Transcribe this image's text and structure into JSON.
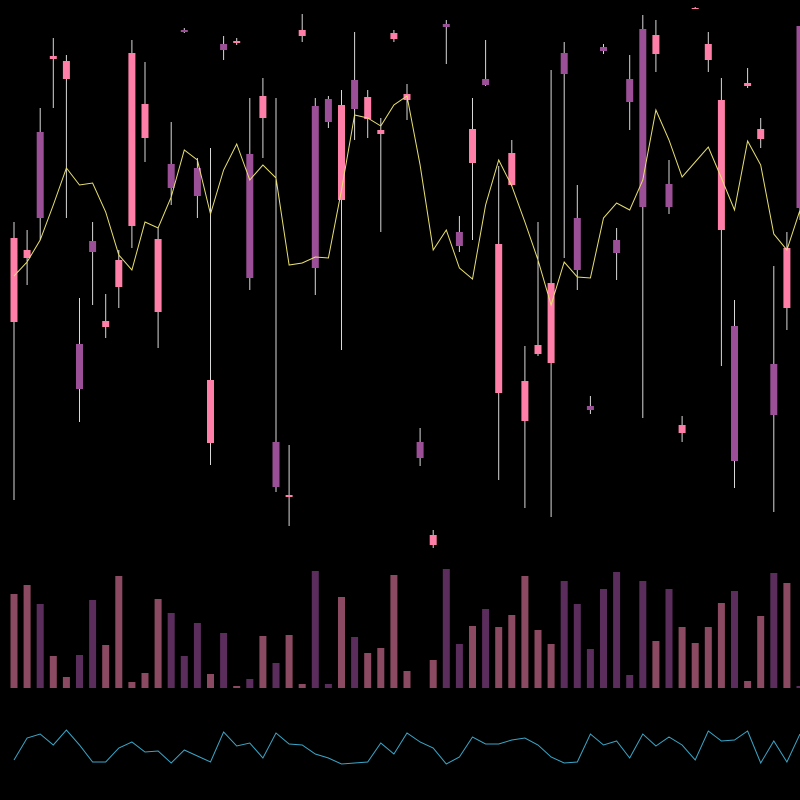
{
  "chart_data": [
    {
      "type": "candlestick",
      "open": [
        238,
        302,
        428,
        501,
        481,
        216,
        319,
        233,
        273,
        334,
        422,
        248,
        396,
        530,
        392,
        117,
        516,
        517,
        406,
        442,
        118,
        63,
        524,
        454,
        461,
        360,
        480,
        441,
        426,
        521,
        460,
        118,
        15,
        536,
        328,
        397,
        481,
        167,
        375,
        139,
        206,
        197,
        507,
        342,
        154,
        513,
        320,
        481,
        531,
        506,
        376,
        127,
        551,
        500,
        330,
        234,
        474,
        421,
        196,
        252,
        534
      ],
      "high": [
        338,
        330,
        452,
        522,
        505,
        262,
        338,
        266,
        310,
        520,
        498,
        332,
        438,
        532,
        402,
        412,
        524,
        522,
        462,
        482,
        462,
        115,
        546,
        462,
        464,
        470,
        528,
        470,
        442,
        530,
        476,
        132,
        30,
        540,
        344,
        462,
        520,
        394,
        420,
        214,
        338,
        490,
        518,
        375,
        164,
        516,
        332,
        505,
        545,
        540,
        400,
        144,
        553,
        528,
        482,
        260,
        492,
        442,
        294,
        328,
        534
      ],
      "low": [
        60,
        275,
        320,
        452,
        342,
        138,
        255,
        222,
        252,
        312,
        398,
        212,
        355,
        527,
        342,
        95,
        500,
        515,
        270,
        402,
        68,
        34,
        518,
        265,
        432,
        210,
        420,
        422,
        328,
        518,
        440,
        94,
        12,
        496,
        308,
        320,
        474,
        80,
        374,
        52,
        204,
        43,
        302,
        270,
        146,
        506,
        280,
        430,
        142,
        488,
        346,
        118,
        551,
        488,
        194,
        72,
        472,
        412,
        48,
        230,
        340
      ],
      "close": [
        322,
        310,
        342,
        504,
        499,
        171,
        308,
        239,
        300,
        507,
        456,
        321,
        372,
        528,
        364,
        180,
        510,
        519,
        282,
        464,
        73,
        65,
        530,
        292,
        438,
        455,
        451,
        463,
        430,
        527,
        466,
        102,
        25,
        533,
        314,
        431,
        475,
        316,
        407,
        179,
        215,
        277,
        486,
        290,
        150,
        509,
        307,
        458,
        353,
        525,
        353,
        135,
        552,
        516,
        460,
        99,
        477,
        431,
        145,
        312,
        352
      ],
      "up_color": "#ff7fa8",
      "down_color": "#9b4f96",
      "wick_color": "#d8d8d8",
      "ylim": [
        0,
        560
      ],
      "ma": {
        "color": "#e8e070",
        "values": [
          284,
          298,
          320,
          355,
          392,
          375,
          377,
          348,
          305,
          290,
          338,
          332,
          363,
          410,
          400,
          346,
          390,
          416,
          380,
          395,
          382,
          295,
          297,
          303,
          302,
          370,
          445,
          442,
          434,
          455,
          464,
          395,
          310,
          330,
          292,
          281,
          355,
          400,
          374,
          338,
          300,
          255,
          298,
          283,
          282,
          342,
          357,
          350,
          380,
          450,
          420,
          383,
          398,
          413,
          382,
          350,
          419,
          395,
          326,
          310,
          350
        ]
      }
    },
    {
      "type": "bar",
      "values": [
        94,
        103,
        84,
        32,
        11,
        33,
        88,
        43,
        112,
        6,
        15,
        89,
        75,
        32,
        65,
        14,
        55,
        2,
        9,
        52,
        25,
        53,
        4,
        117,
        4,
        91,
        51,
        35,
        40,
        113,
        17,
        0,
        28,
        119,
        44,
        62,
        79,
        61,
        73,
        112,
        58,
        44,
        107,
        84,
        39,
        99,
        116,
        13,
        107,
        47,
        99,
        61,
        45,
        61,
        85,
        97,
        7,
        72,
        115,
        105,
        2
      ],
      "up_color": "#8c4a62",
      "down_color": "#5b2d5c",
      "ylim": [
        0,
        130
      ]
    },
    {
      "type": "line",
      "values": [
        20,
        42,
        46,
        35,
        50,
        35,
        18,
        18,
        32,
        38,
        28,
        29,
        17,
        30,
        24,
        18,
        48,
        34,
        37,
        22,
        47,
        36,
        35,
        26,
        22,
        16,
        17,
        18,
        37,
        26,
        47,
        38,
        32,
        16,
        23,
        43,
        36,
        36,
        40,
        42,
        35,
        23,
        17,
        18,
        46,
        35,
        39,
        22,
        46,
        34,
        43,
        35,
        20,
        49,
        39,
        40,
        49,
        17,
        39,
        18,
        46
      ],
      "color": "#3aa6c8",
      "ylim": [
        0,
        60
      ]
    }
  ]
}
